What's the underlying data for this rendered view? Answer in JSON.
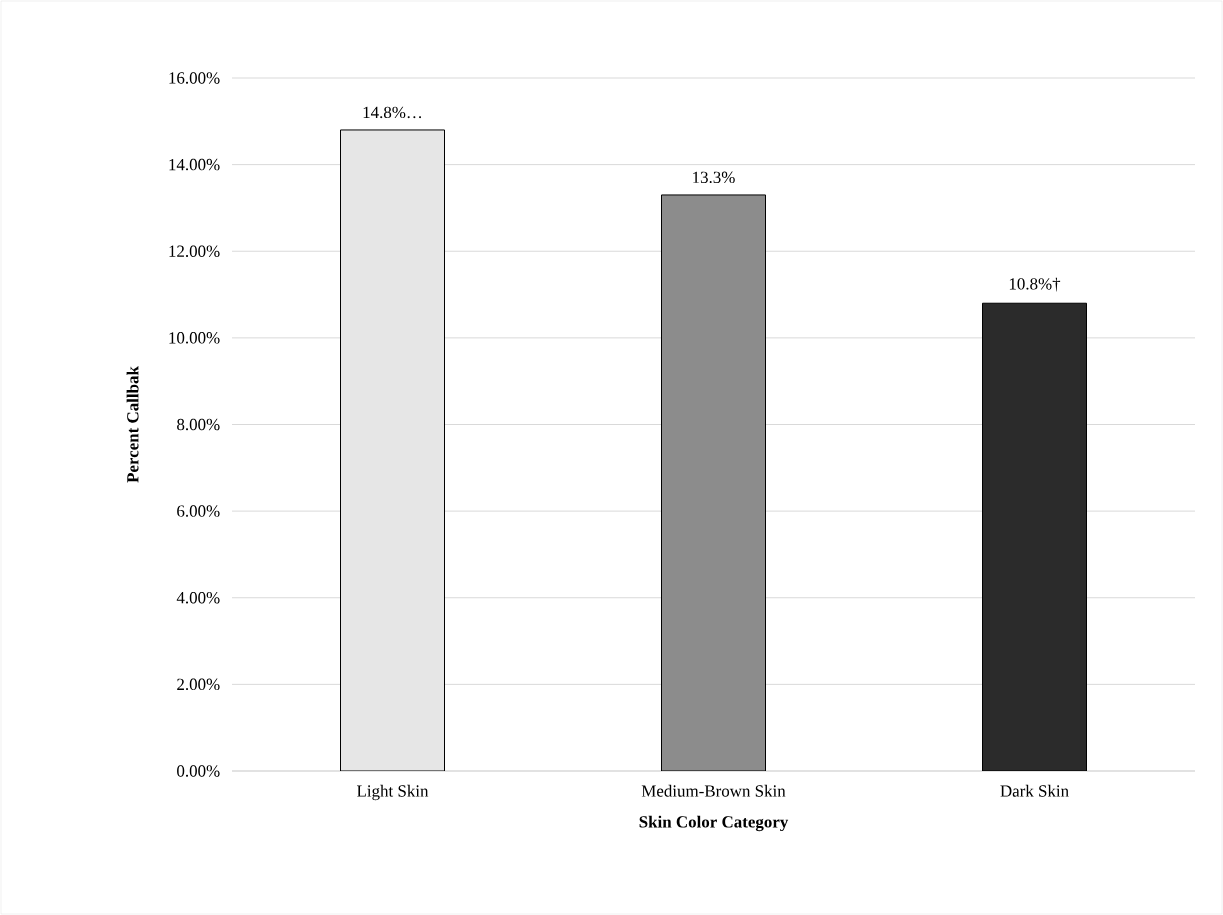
{
  "chart_data": {
    "type": "bar",
    "xlabel": "Skin Color Category",
    "ylabel": "Percent Callbak",
    "categories": [
      "Light Skin",
      "Medium-Brown Skin",
      "Dark Skin"
    ],
    "values": [
      14.8,
      13.3,
      10.8
    ],
    "value_labels": [
      "14.8%…",
      "13.3%",
      "10.8%†"
    ],
    "colors": [
      "#e6e6e6",
      "#8c8c8c",
      "#2b2b2b"
    ],
    "ylim": [
      0,
      16
    ],
    "yticks": [
      {
        "value": 0,
        "label": "0.00%"
      },
      {
        "value": 2,
        "label": "2.00%"
      },
      {
        "value": 4,
        "label": "4.00%"
      },
      {
        "value": 6,
        "label": "6.00%"
      },
      {
        "value": 8,
        "label": "8.00%"
      },
      {
        "value": 10,
        "label": "10.00%"
      },
      {
        "value": 12,
        "label": "12.00%"
      },
      {
        "value": 14,
        "label": "14.00%"
      },
      {
        "value": 16,
        "label": "16.00%"
      }
    ],
    "grid": "y"
  }
}
